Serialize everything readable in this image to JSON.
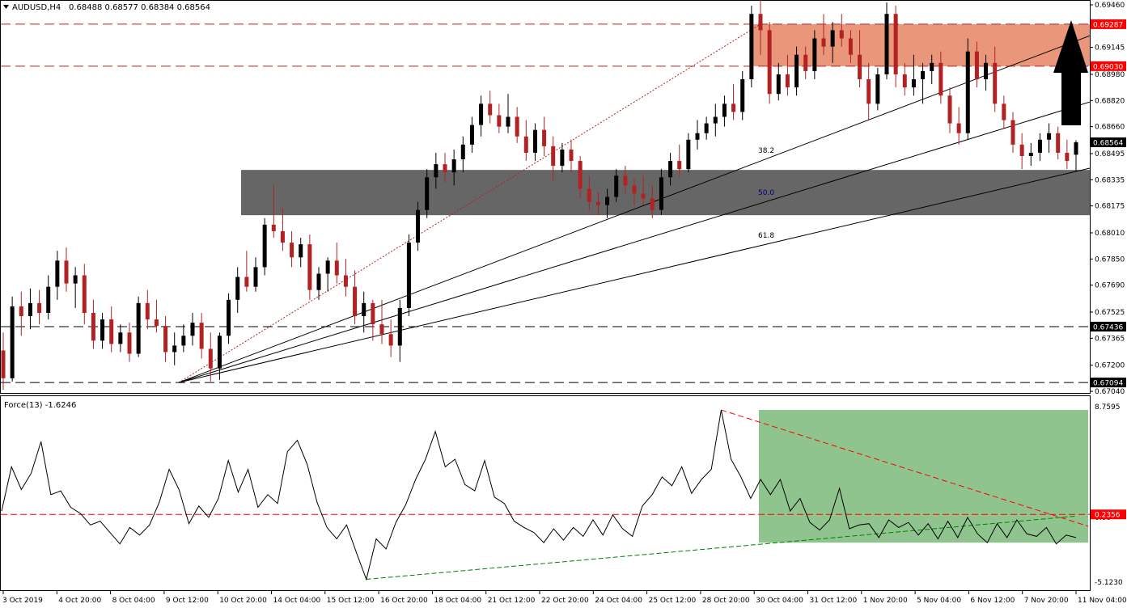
{
  "chart_data": [
    {
      "type": "candlestick",
      "symbol_label": "AUDUSD,H4",
      "ohlc_label": "0.68488 0.68577 0.68384 0.68564",
      "ylim": [
        0.6704,
        0.6944
      ],
      "y_ticks": [
        "0.69460",
        "0.69145",
        "0.68980",
        "0.68820",
        "0.68660",
        "0.68495",
        "0.68335",
        "0.68175",
        "0.68010",
        "0.67850",
        "0.67690",
        "0.67525",
        "0.67365",
        "0.67200",
        "0.67040"
      ],
      "price_tags": [
        {
          "value": 0.69287,
          "label": "0.69287",
          "style": "red-dash"
        },
        {
          "value": 0.6903,
          "label": "0.69030",
          "style": "red-dash"
        },
        {
          "value": 0.68564,
          "label": "0.68564",
          "style": "current"
        },
        {
          "value": 0.67436,
          "label": "0.67436",
          "style": "black-dash"
        },
        {
          "value": 0.67094,
          "label": "0.67094",
          "style": "black-dash"
        }
      ],
      "resistance_zone": {
        "from": 0.6903,
        "to": 0.69287,
        "color": "#E9967A"
      },
      "support_zone": {
        "from": 0.68118,
        "to": 0.68395,
        "color": "#666666"
      },
      "fib_labels": [
        "38.2",
        "50.0",
        "61.8"
      ],
      "fan_origin": {
        "index": 0,
        "price": 0.67094
      },
      "fan_target": {
        "index": 1,
        "price": 0.69287
      },
      "arrow": {
        "direction": "up",
        "color": "#000000"
      },
      "colors": {
        "bull": "#000000",
        "bear": "#B22222",
        "support": "#666666",
        "resistance": "#E9967A"
      }
    },
    {
      "type": "line",
      "label": "Force(13) -1.6246",
      "ylim": [
        -5.123,
        8.7595
      ],
      "y_ticks": [
        "8.7595",
        "0.00",
        "-5.1230"
      ],
      "level": {
        "value": 0.2356,
        "label": "0.2356"
      },
      "values": [
        0.5,
        4.0,
        2.2,
        3.5,
        6.0,
        1.8,
        2.1,
        0.8,
        0.3,
        -0.6,
        -0.3,
        -1.2,
        -2.1,
        -0.8,
        -1.4,
        -0.6,
        1.2,
        3.8,
        2.2,
        -0.5,
        0.9,
        0.0,
        1.5,
        4.5,
        2.0,
        3.8,
        0.8,
        1.8,
        1.1,
        5.2,
        6.1,
        4.2,
        1.2,
        -0.8,
        -1.7,
        -0.6,
        -2.8,
        -4.9,
        -1.7,
        -2.5,
        -0.4,
        1.0,
        3.0,
        4.6,
        6.8,
        4.0,
        4.6,
        2.6,
        2.1,
        4.5,
        1.6,
        1.1,
        -0.3,
        -0.8,
        -1.2,
        -2.0,
        -0.9,
        -1.8,
        -0.8,
        -1.5,
        -0.2,
        -1.4,
        0.2,
        -0.9,
        -1.5,
        0.9,
        1.8,
        3.2,
        2.5,
        4.0,
        1.9,
        3.0,
        3.8,
        8.5,
        4.6,
        3.2,
        1.5,
        3.0,
        1.8,
        3.0,
        0.5,
        1.5,
        -0.4,
        -1.0,
        -0.2,
        2.3,
        -0.9,
        -0.6,
        -0.5,
        -1.6,
        -0.2,
        -0.8,
        -0.4,
        -1.4,
        -0.5,
        -1.7,
        -0.3,
        -1.6,
        0.0,
        -1.3,
        -2.0,
        -0.5,
        -1.6,
        -0.2,
        -1.3,
        -1.5,
        -0.8,
        -2.1,
        -1.4,
        -1.6
      ],
      "value_box": {
        "from": -2.0,
        "to": 8.5,
        "color": "#8FC48E"
      },
      "colors": {
        "line": "#000000",
        "level": "#ff0000",
        "uptrend": "#008000",
        "downtrend": "#ff0000"
      }
    }
  ],
  "x_labels": [
    "3 Oct 2019",
    "4 Oct 20:00",
    "8 Oct 04:00",
    "9 Oct 12:00",
    "10 Oct 20:00",
    "14 Oct 04:00",
    "15 Oct 12:00",
    "16 Oct 20:00",
    "18 Oct 04:00",
    "21 Oct 12:00",
    "22 Oct 20:00",
    "24 Oct 04:00",
    "25 Oct 12:00",
    "28 Oct 20:00",
    "30 Oct 04:00",
    "31 Oct 12:00",
    "1 Nov 20:00",
    "5 Nov 04:00",
    "6 Nov 12:00",
    "7 Nov 20:00",
    "11 Nov 04:00"
  ],
  "candles": [
    [
      0.6729,
      0.674,
      0.6705,
      0.6712
    ],
    [
      0.6712,
      0.6762,
      0.671,
      0.6756
    ],
    [
      0.6756,
      0.6765,
      0.6738,
      0.675
    ],
    [
      0.675,
      0.6767,
      0.6742,
      0.6758
    ],
    [
      0.6758,
      0.6766,
      0.6745,
      0.6752
    ],
    [
      0.6752,
      0.6775,
      0.6748,
      0.6768
    ],
    [
      0.6768,
      0.679,
      0.676,
      0.6784
    ],
    [
      0.6784,
      0.6792,
      0.6765,
      0.677
    ],
    [
      0.677,
      0.678,
      0.6755,
      0.6775
    ],
    [
      0.6775,
      0.6782,
      0.6745,
      0.6752
    ],
    [
      0.6752,
      0.676,
      0.673,
      0.6735
    ],
    [
      0.6735,
      0.6752,
      0.673,
      0.6748
    ],
    [
      0.6748,
      0.6756,
      0.6728,
      0.6733
    ],
    [
      0.6733,
      0.6745,
      0.6728,
      0.674
    ],
    [
      0.674,
      0.6746,
      0.6722,
      0.6727
    ],
    [
      0.6727,
      0.6762,
      0.6725,
      0.6758
    ],
    [
      0.6758,
      0.6766,
      0.6742,
      0.6748
    ],
    [
      0.6748,
      0.676,
      0.674,
      0.6744
    ],
    [
      0.6744,
      0.675,
      0.6722,
      0.6728
    ],
    [
      0.6728,
      0.674,
      0.672,
      0.6732
    ],
    [
      0.6732,
      0.6745,
      0.6728,
      0.6738
    ],
    [
      0.6738,
      0.6752,
      0.6732,
      0.6746
    ],
    [
      0.6746,
      0.6752,
      0.6724,
      0.673
    ],
    [
      0.673,
      0.674,
      0.671,
      0.6718
    ],
    [
      0.6718,
      0.674,
      0.6711,
      0.6738
    ],
    [
      0.6738,
      0.6764,
      0.6733,
      0.676
    ],
    [
      0.676,
      0.678,
      0.6752,
      0.6774
    ],
    [
      0.6774,
      0.679,
      0.6765,
      0.6768
    ],
    [
      0.6768,
      0.6786,
      0.6765,
      0.678
    ],
    [
      0.678,
      0.681,
      0.6775,
      0.6806
    ],
    [
      0.6806,
      0.683,
      0.6798,
      0.6802
    ],
    [
      0.6802,
      0.6816,
      0.679,
      0.6795
    ],
    [
      0.6795,
      0.6802,
      0.678,
      0.6786
    ],
    [
      0.6786,
      0.6798,
      0.678,
      0.6794
    ],
    [
      0.6794,
      0.68,
      0.676,
      0.6766
    ],
    [
      0.6766,
      0.678,
      0.676,
      0.6776
    ],
    [
      0.6776,
      0.6786,
      0.6765,
      0.6784
    ],
    [
      0.6784,
      0.6795,
      0.677,
      0.6775
    ],
    [
      0.6775,
      0.6785,
      0.6762,
      0.6768
    ],
    [
      0.6768,
      0.6778,
      0.6745,
      0.675
    ],
    [
      0.675,
      0.6765,
      0.674,
      0.6758
    ],
    [
      0.6758,
      0.676,
      0.6735,
      0.6745
    ],
    [
      0.6745,
      0.676,
      0.6733,
      0.6739
    ],
    [
      0.6739,
      0.6748,
      0.6725,
      0.6732
    ],
    [
      0.6732,
      0.676,
      0.6722,
      0.6755
    ],
    [
      0.6755,
      0.68,
      0.675,
      0.6795
    ],
    [
      0.6795,
      0.682,
      0.679,
      0.6815
    ],
    [
      0.6815,
      0.684,
      0.681,
      0.6835
    ],
    [
      0.6835,
      0.685,
      0.6828,
      0.6843
    ],
    [
      0.6843,
      0.685,
      0.6832,
      0.6838
    ],
    [
      0.6838,
      0.6852,
      0.683,
      0.6846
    ],
    [
      0.6846,
      0.686,
      0.6838,
      0.6855
    ],
    [
      0.6855,
      0.6872,
      0.685,
      0.6867
    ],
    [
      0.6867,
      0.6885,
      0.686,
      0.688
    ],
    [
      0.688,
      0.6888,
      0.6868,
      0.6873
    ],
    [
      0.6873,
      0.688,
      0.6862,
      0.6866
    ],
    [
      0.6866,
      0.6886,
      0.6862,
      0.6872
    ],
    [
      0.6872,
      0.6878,
      0.6856,
      0.686
    ],
    [
      0.686,
      0.687,
      0.6845,
      0.685
    ],
    [
      0.685,
      0.6868,
      0.6845,
      0.6864
    ],
    [
      0.6864,
      0.6872,
      0.6848,
      0.6854
    ],
    [
      0.6854,
      0.686,
      0.6833,
      0.6842
    ],
    [
      0.6842,
      0.6856,
      0.6838,
      0.6852
    ],
    [
      0.6852,
      0.6858,
      0.6838,
      0.6845
    ],
    [
      0.6845,
      0.6848,
      0.6822,
      0.6828
    ],
    [
      0.6828,
      0.6836,
      0.6815,
      0.682
    ],
    [
      0.682,
      0.6826,
      0.6812,
      0.6818
    ],
    [
      0.6818,
      0.6828,
      0.681,
      0.6823
    ],
    [
      0.6823,
      0.684,
      0.682,
      0.6836
    ],
    [
      0.6836,
      0.6842,
      0.6825,
      0.683
    ],
    [
      0.683,
      0.6834,
      0.6818,
      0.6825
    ],
    [
      0.6825,
      0.6836,
      0.6818,
      0.6822
    ],
    [
      0.6822,
      0.683,
      0.681,
      0.6815
    ],
    [
      0.6815,
      0.684,
      0.6812,
      0.6835
    ],
    [
      0.6835,
      0.685,
      0.683,
      0.6845
    ],
    [
      0.6845,
      0.6855,
      0.6835,
      0.684
    ],
    [
      0.684,
      0.6862,
      0.6838,
      0.6858
    ],
    [
      0.6858,
      0.687,
      0.6852,
      0.6862
    ],
    [
      0.6862,
      0.6872,
      0.6858,
      0.6868
    ],
    [
      0.6868,
      0.688,
      0.686,
      0.6872
    ],
    [
      0.6872,
      0.6885,
      0.6866,
      0.688
    ],
    [
      0.688,
      0.6892,
      0.687,
      0.6875
    ],
    [
      0.6875,
      0.69,
      0.687,
      0.6895
    ],
    [
      0.6895,
      0.694,
      0.689,
      0.6935
    ],
    [
      0.6935,
      0.6944,
      0.691,
      0.6925
    ],
    [
      0.6925,
      0.693,
      0.688,
      0.6886
    ],
    [
      0.6886,
      0.6905,
      0.6882,
      0.6898
    ],
    [
      0.6898,
      0.691,
      0.6885,
      0.689
    ],
    [
      0.689,
      0.6915,
      0.6885,
      0.691
    ],
    [
      0.691,
      0.6915,
      0.6895,
      0.69
    ],
    [
      0.69,
      0.6925,
      0.6895,
      0.692
    ],
    [
      0.692,
      0.6935,
      0.691,
      0.6915
    ],
    [
      0.6915,
      0.693,
      0.6905,
      0.6925
    ],
    [
      0.6925,
      0.6935,
      0.6915,
      0.692
    ],
    [
      0.692,
      0.6925,
      0.6905,
      0.691
    ],
    [
      0.691,
      0.6925,
      0.689,
      0.6895
    ],
    [
      0.6895,
      0.6905,
      0.687,
      0.688
    ],
    [
      0.688,
      0.6902,
      0.6876,
      0.6898
    ],
    [
      0.6898,
      0.6942,
      0.6895,
      0.6935
    ],
    [
      0.6935,
      0.694,
      0.689,
      0.6898
    ],
    [
      0.6898,
      0.6905,
      0.6885,
      0.689
    ],
    [
      0.689,
      0.691,
      0.6885,
      0.6895
    ],
    [
      0.6895,
      0.6905,
      0.688,
      0.69
    ],
    [
      0.69,
      0.691,
      0.6892,
      0.6905
    ],
    [
      0.6905,
      0.6912,
      0.688,
      0.6885
    ],
    [
      0.6885,
      0.689,
      0.6862,
      0.6868
    ],
    [
      0.6868,
      0.6878,
      0.6855,
      0.6862
    ],
    [
      0.6862,
      0.692,
      0.6858,
      0.6912
    ],
    [
      0.6912,
      0.6918,
      0.689,
      0.6895
    ],
    [
      0.6895,
      0.691,
      0.6888,
      0.6905
    ],
    [
      0.6905,
      0.6915,
      0.6875,
      0.688
    ],
    [
      0.688,
      0.6885,
      0.6865,
      0.687
    ],
    [
      0.687,
      0.6875,
      0.685,
      0.6855
    ],
    [
      0.6855,
      0.6862,
      0.684,
      0.6848
    ],
    [
      0.6848,
      0.6856,
      0.6842,
      0.685
    ],
    [
      0.685,
      0.6862,
      0.6845,
      0.6858
    ],
    [
      0.6858,
      0.6868,
      0.685,
      0.6862
    ],
    [
      0.6862,
      0.6866,
      0.6846,
      0.685
    ],
    [
      0.685,
      0.6858,
      0.684,
      0.6845
    ],
    [
      0.68488,
      0.68577,
      0.68384,
      0.68564
    ]
  ]
}
